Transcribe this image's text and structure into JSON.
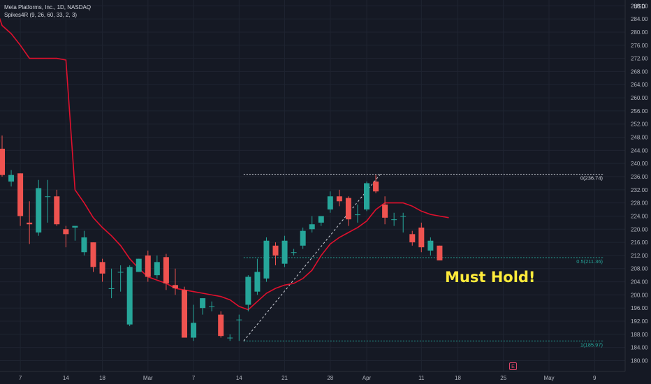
{
  "legend": {
    "symbol": "Meta Platforms, Inc., 1D, NASDAQ",
    "indicator": "Spikes4R (9, 26, 60, 33, 2, 3)"
  },
  "currency": "USD",
  "callout": "Must Hold!",
  "event_badge": "E",
  "colors": {
    "background": "#151924",
    "up": "#26a69a",
    "down": "#ef5350",
    "indicator": "#e0102d",
    "grid": "#1f2431",
    "callout": "#ffeb3b"
  },
  "chart_data": {
    "type": "candlestick",
    "ylim": [
      178,
      290
    ],
    "y_ticks": [
      180,
      184,
      188,
      192,
      196,
      200,
      204,
      208,
      212,
      216,
      220,
      224,
      228,
      232,
      236,
      240,
      244,
      248,
      252,
      256,
      260,
      264,
      268,
      272,
      276,
      280,
      284,
      288
    ],
    "x_tick_labels": [
      {
        "index": 2,
        "label": "7"
      },
      {
        "index": 7,
        "label": "14"
      },
      {
        "index": 11,
        "label": "18"
      },
      {
        "index": 16,
        "label": "Mar"
      },
      {
        "index": 21,
        "label": "7"
      },
      {
        "index": 26,
        "label": "14"
      },
      {
        "index": 31,
        "label": "21"
      },
      {
        "index": 36,
        "label": "28"
      },
      {
        "index": 40,
        "label": "Apr"
      },
      {
        "index": 46,
        "label": "11"
      },
      {
        "index": 50,
        "label": "18"
      },
      {
        "index": 55,
        "label": "25"
      },
      {
        "index": 60,
        "label": "May"
      },
      {
        "index": 65,
        "label": "9"
      }
    ],
    "candles": [
      {
        "o": 244.5,
        "h": 248.5,
        "l": 236,
        "c": 236.5
      },
      {
        "o": 234.5,
        "h": 238,
        "l": 233,
        "c": 236.5
      },
      {
        "o": 237,
        "h": 237,
        "l": 221,
        "c": 224
      },
      {
        "o": 222,
        "h": 228.5,
        "l": 215.5,
        "c": 221.5
      },
      {
        "o": 219,
        "h": 235,
        "l": 218,
        "c": 232.5
      },
      {
        "o": 230,
        "h": 235,
        "l": 222,
        "c": 230
      },
      {
        "o": 230,
        "h": 232,
        "l": 221,
        "c": 221.5
      },
      {
        "o": 220,
        "h": 221,
        "l": 214.5,
        "c": 218.5
      },
      {
        "o": 220.5,
        "h": 221,
        "l": 216.5,
        "c": 221
      },
      {
        "o": 213,
        "h": 219.5,
        "l": 212,
        "c": 217.5
      },
      {
        "o": 216,
        "h": 216,
        "l": 207,
        "c": 208.5
      },
      {
        "o": 210,
        "h": 211,
        "l": 204,
        "c": 206.5
      },
      {
        "o": 202,
        "h": 208,
        "l": 199,
        "c": 202
      },
      {
        "o": 207,
        "h": 209,
        "l": 201,
        "c": 207
      },
      {
        "o": 191,
        "h": 209,
        "l": 190.5,
        "c": 208.5
      },
      {
        "o": 207,
        "h": 211,
        "l": 207,
        "c": 211
      },
      {
        "o": 212,
        "h": 213.5,
        "l": 204,
        "c": 205.5
      },
      {
        "o": 206,
        "h": 212,
        "l": 205,
        "c": 210
      },
      {
        "o": 211.5,
        "h": 212.5,
        "l": 201.5,
        "c": 203.5
      },
      {
        "o": 203,
        "h": 208,
        "l": 200,
        "c": 202
      },
      {
        "o": 201.5,
        "h": 202.5,
        "l": 187,
        "c": 187
      },
      {
        "o": 187,
        "h": 197,
        "l": 186,
        "c": 191.5
      },
      {
        "o": 196,
        "h": 199,
        "l": 194,
        "c": 199
      },
      {
        "o": 196.5,
        "h": 198,
        "l": 195,
        "c": 196.5
      },
      {
        "o": 194,
        "h": 195,
        "l": 187,
        "c": 187.5
      },
      {
        "o": 187,
        "h": 188,
        "l": 186,
        "c": 187
      },
      {
        "o": 192.5,
        "h": 194,
        "l": 186,
        "c": 192.5
      },
      {
        "o": 197,
        "h": 206,
        "l": 195,
        "c": 205.5
      },
      {
        "o": 201,
        "h": 211,
        "l": 200,
        "c": 207
      },
      {
        "o": 205,
        "h": 217.5,
        "l": 204,
        "c": 216.5
      },
      {
        "o": 215,
        "h": 216,
        "l": 209,
        "c": 212
      },
      {
        "o": 209.5,
        "h": 218,
        "l": 208.5,
        "c": 216.5
      },
      {
        "o": 213,
        "h": 214,
        "l": 212,
        "c": 213
      },
      {
        "o": 215,
        "h": 220.5,
        "l": 214,
        "c": 219.5
      },
      {
        "o": 220,
        "h": 224,
        "l": 219,
        "c": 221.5
      },
      {
        "o": 222,
        "h": 224,
        "l": 221,
        "c": 224
      },
      {
        "o": 226,
        "h": 231.5,
        "l": 225,
        "c": 230
      },
      {
        "o": 230,
        "h": 232,
        "l": 227,
        "c": 228.5
      },
      {
        "o": 229.5,
        "h": 230,
        "l": 221,
        "c": 223
      },
      {
        "o": 224.5,
        "h": 227.5,
        "l": 222,
        "c": 224.5
      },
      {
        "o": 226,
        "h": 234.5,
        "l": 225.5,
        "c": 234
      },
      {
        "o": 234.5,
        "h": 236.5,
        "l": 231,
        "c": 231.5
      },
      {
        "o": 227.5,
        "h": 230,
        "l": 221.5,
        "c": 223.5
      },
      {
        "o": 223,
        "h": 225,
        "l": 221,
        "c": 223
      },
      {
        "o": 224,
        "h": 225,
        "l": 219,
        "c": 224
      },
      {
        "o": 218.5,
        "h": 219.5,
        "l": 215,
        "c": 216
      },
      {
        "o": 220.5,
        "h": 222,
        "l": 213,
        "c": 214.5
      },
      {
        "o": 213.5,
        "h": 217.5,
        "l": 212,
        "c": 216.5
      },
      {
        "o": 215,
        "h": 215,
        "l": 210.5,
        "c": 210.5
      }
    ],
    "indicator_line": [
      {
        "i": -1,
        "y": 290
      },
      {
        "i": 0,
        "y": 282
      },
      {
        "i": 1,
        "y": 279.5
      },
      {
        "i": 2,
        "y": 276
      },
      {
        "i": 3,
        "y": 272
      },
      {
        "i": 4,
        "y": 272
      },
      {
        "i": 5,
        "y": 272
      },
      {
        "i": 6,
        "y": 272
      },
      {
        "i": 7,
        "y": 271.5
      },
      {
        "i": 8,
        "y": 232
      },
      {
        "i": 9,
        "y": 228
      },
      {
        "i": 10,
        "y": 223.5
      },
      {
        "i": 11,
        "y": 220.5
      },
      {
        "i": 12,
        "y": 218
      },
      {
        "i": 13,
        "y": 215
      },
      {
        "i": 14,
        "y": 211
      },
      {
        "i": 15,
        "y": 208
      },
      {
        "i": 16,
        "y": 205.5
      },
      {
        "i": 17,
        "y": 204.5
      },
      {
        "i": 18,
        "y": 203.5
      },
      {
        "i": 19,
        "y": 202
      },
      {
        "i": 20,
        "y": 201.5
      },
      {
        "i": 21,
        "y": 201
      },
      {
        "i": 22,
        "y": 200.5
      },
      {
        "i": 23,
        "y": 200
      },
      {
        "i": 24,
        "y": 199.5
      },
      {
        "i": 25,
        "y": 198.5
      },
      {
        "i": 26,
        "y": 196.5
      },
      {
        "i": 27,
        "y": 195.5
      },
      {
        "i": 28,
        "y": 198
      },
      {
        "i": 29,
        "y": 200.5
      },
      {
        "i": 30,
        "y": 202
      },
      {
        "i": 31,
        "y": 203
      },
      {
        "i": 32,
        "y": 203.5
      },
      {
        "i": 33,
        "y": 205
      },
      {
        "i": 34,
        "y": 207.5
      },
      {
        "i": 35,
        "y": 212
      },
      {
        "i": 36,
        "y": 215.5
      },
      {
        "i": 37,
        "y": 217.5
      },
      {
        "i": 38,
        "y": 219
      },
      {
        "i": 39,
        "y": 220.5
      },
      {
        "i": 40,
        "y": 222.5
      },
      {
        "i": 41,
        "y": 226
      },
      {
        "i": 42,
        "y": 228
      },
      {
        "i": 43,
        "y": 228
      },
      {
        "i": 44,
        "y": 228
      },
      {
        "i": 45,
        "y": 227
      },
      {
        "i": 46,
        "y": 225.5
      },
      {
        "i": 47,
        "y": 224.5
      },
      {
        "i": 48,
        "y": 224
      },
      {
        "i": 49,
        "y": 223.5
      }
    ],
    "fib_levels": [
      {
        "label": "0(236.74)",
        "value": 236.74,
        "start_index": 26.5
      },
      {
        "label": "0.5(211.36)",
        "value": 211.36,
        "start_index": 26.5
      },
      {
        "label": "1(185.97)",
        "value": 185.97,
        "start_index": 26.5
      }
    ],
    "trend_line": {
      "from": {
        "i": 26.5,
        "y": 185.97
      },
      "to": {
        "i": 41.5,
        "y": 236.74
      }
    }
  }
}
